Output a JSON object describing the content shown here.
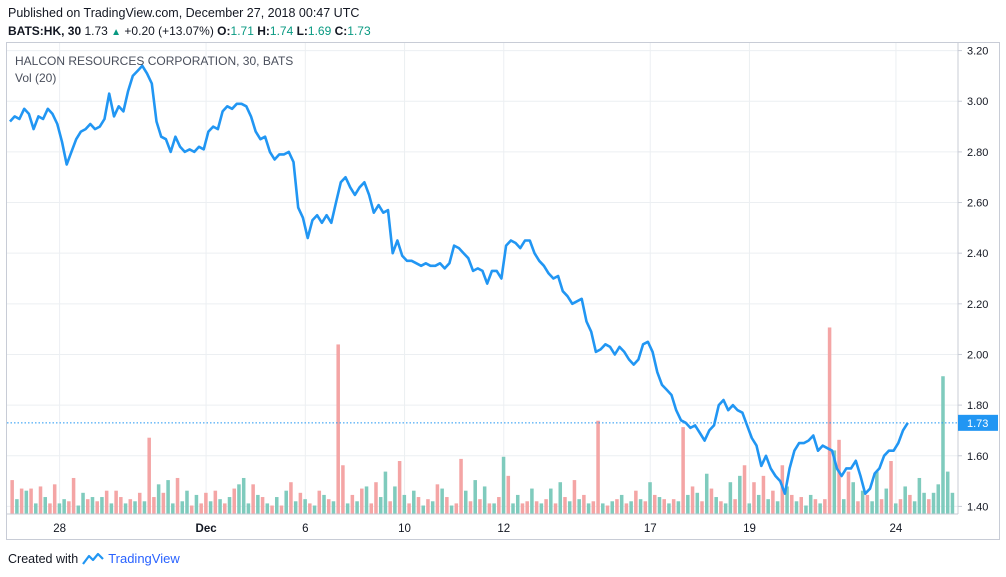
{
  "header": {
    "published": "Published on TradingView.com, December 27, 2018 00:47 UTC",
    "symbol": "BATS:HK, 30",
    "last": "1.73",
    "up_arrow": "▲",
    "change": "+0.20 (+13.07%)",
    "o_label": "O:",
    "o_value": "1.71",
    "h_label": "H:",
    "h_value": "1.74",
    "l_label": "L:",
    "l_value": "1.69",
    "c_label": "C:",
    "c_value": "1.73"
  },
  "legend": {
    "title": "HALCON RESOURCES CORPORATION, 30, BATS",
    "volume": "Vol (20)"
  },
  "footer": {
    "created_with": "Created with",
    "brand": "TradingView"
  },
  "colors": {
    "line": "#2196f3",
    "vol_up": "#7fcbbd",
    "vol_down": "#f4a5a5",
    "grid": "#eceff2",
    "last_price_line": "#2196f3"
  },
  "chart_data": {
    "type": "line",
    "title": "HALCON RESOURCES CORPORATION, 30, BATS",
    "ylim": [
      1.37,
      3.23
    ],
    "y_ticks": [
      "3.20",
      "3.00",
      "2.80",
      "2.60",
      "2.40",
      "2.20",
      "2.00",
      "1.80",
      "1.60",
      "1.40"
    ],
    "x_ticks": [
      "28",
      "Dec",
      "6",
      "10",
      "12",
      "17",
      "19",
      "24"
    ],
    "x_tick_index": [
      10.5,
      41.5,
      62.5,
      83.5,
      104.5,
      135.5,
      156.5,
      187.5
    ],
    "last_price": 1.73,
    "last_price_label": "1.73",
    "n_points": 200,
    "price_anchors": [
      [
        0,
        2.92
      ],
      [
        1,
        2.94
      ],
      [
        2,
        2.93
      ],
      [
        3,
        2.97
      ],
      [
        4,
        2.95
      ],
      [
        5,
        2.89
      ],
      [
        6,
        2.94
      ],
      [
        7,
        2.93
      ],
      [
        8,
        2.97
      ],
      [
        9,
        2.95
      ],
      [
        10,
        2.91
      ],
      [
        11,
        2.84
      ],
      [
        12,
        2.75
      ],
      [
        13,
        2.8
      ],
      [
        14,
        2.85
      ],
      [
        15,
        2.88
      ],
      [
        16,
        2.89
      ],
      [
        17,
        2.91
      ],
      [
        18,
        2.89
      ],
      [
        19,
        2.9
      ],
      [
        20,
        2.93
      ],
      [
        21,
        3.03
      ],
      [
        22,
        2.94
      ],
      [
        23,
        2.98
      ],
      [
        24,
        2.96
      ],
      [
        25,
        3.04
      ],
      [
        26,
        3.1
      ],
      [
        27,
        3.12
      ],
      [
        28,
        3.14
      ],
      [
        29,
        3.11
      ],
      [
        30,
        3.07
      ],
      [
        31,
        2.92
      ],
      [
        32,
        2.86
      ],
      [
        33,
        2.85
      ],
      [
        34,
        2.8
      ],
      [
        35,
        2.86
      ],
      [
        36,
        2.82
      ],
      [
        37,
        2.8
      ],
      [
        38,
        2.81
      ],
      [
        39,
        2.8
      ],
      [
        40,
        2.82
      ],
      [
        41,
        2.81
      ],
      [
        42,
        2.88
      ],
      [
        43,
        2.9
      ],
      [
        44,
        2.89
      ],
      [
        45,
        2.96
      ],
      [
        46,
        2.98
      ],
      [
        47,
        2.97
      ],
      [
        48,
        2.99
      ],
      [
        49,
        2.99
      ],
      [
        50,
        2.98
      ],
      [
        51,
        2.94
      ],
      [
        52,
        2.88
      ],
      [
        53,
        2.85
      ],
      [
        54,
        2.86
      ],
      [
        55,
        2.8
      ],
      [
        56,
        2.77
      ],
      [
        57,
        2.79
      ],
      [
        58,
        2.79
      ],
      [
        59,
        2.8
      ],
      [
        60,
        2.76
      ],
      [
        61,
        2.58
      ],
      [
        62,
        2.54
      ],
      [
        63,
        2.46
      ],
      [
        64,
        2.53
      ],
      [
        65,
        2.55
      ],
      [
        66,
        2.52
      ],
      [
        67,
        2.55
      ],
      [
        68,
        2.52
      ],
      [
        69,
        2.6
      ],
      [
        70,
        2.68
      ],
      [
        71,
        2.7
      ],
      [
        72,
        2.66
      ],
      [
        73,
        2.63
      ],
      [
        74,
        2.66
      ],
      [
        75,
        2.68
      ],
      [
        76,
        2.63
      ],
      [
        77,
        2.56
      ],
      [
        78,
        2.59
      ],
      [
        79,
        2.56
      ],
      [
        80,
        2.57
      ],
      [
        81,
        2.4
      ],
      [
        82,
        2.45
      ],
      [
        83,
        2.39
      ],
      [
        84,
        2.37
      ],
      [
        85,
        2.37
      ],
      [
        86,
        2.36
      ],
      [
        87,
        2.35
      ],
      [
        88,
        2.36
      ],
      [
        89,
        2.35
      ],
      [
        90,
        2.35
      ],
      [
        91,
        2.36
      ],
      [
        92,
        2.34
      ],
      [
        93,
        2.36
      ],
      [
        94,
        2.43
      ],
      [
        95,
        2.42
      ],
      [
        96,
        2.4
      ],
      [
        97,
        2.38
      ],
      [
        98,
        2.33
      ],
      [
        99,
        2.34
      ],
      [
        100,
        2.33
      ],
      [
        101,
        2.28
      ],
      [
        102,
        2.33
      ],
      [
        103,
        2.33
      ],
      [
        104,
        2.3
      ],
      [
        105,
        2.43
      ],
      [
        106,
        2.45
      ],
      [
        107,
        2.44
      ],
      [
        108,
        2.42
      ],
      [
        109,
        2.45
      ],
      [
        110,
        2.45
      ],
      [
        111,
        2.4
      ],
      [
        112,
        2.37
      ],
      [
        113,
        2.35
      ],
      [
        114,
        2.32
      ],
      [
        115,
        2.3
      ],
      [
        116,
        2.31
      ],
      [
        117,
        2.25
      ],
      [
        118,
        2.23
      ],
      [
        119,
        2.2
      ],
      [
        120,
        2.21
      ],
      [
        121,
        2.22
      ],
      [
        122,
        2.13
      ],
      [
        123,
        2.09
      ],
      [
        124,
        2.01
      ],
      [
        125,
        2.02
      ],
      [
        126,
        2.04
      ],
      [
        127,
        2.03
      ],
      [
        128,
        2.0
      ],
      [
        129,
        2.03
      ],
      [
        130,
        2.01
      ],
      [
        131,
        1.98
      ],
      [
        132,
        1.96
      ],
      [
        133,
        1.98
      ],
      [
        134,
        2.04
      ],
      [
        135,
        2.05
      ],
      [
        136,
        2.01
      ],
      [
        137,
        1.93
      ],
      [
        138,
        1.88
      ],
      [
        139,
        1.86
      ],
      [
        140,
        1.84
      ],
      [
        141,
        1.78
      ],
      [
        142,
        1.74
      ],
      [
        143,
        1.73
      ],
      [
        144,
        1.71
      ],
      [
        145,
        1.72
      ],
      [
        146,
        1.69
      ],
      [
        147,
        1.66
      ],
      [
        148,
        1.7
      ],
      [
        149,
        1.72
      ],
      [
        150,
        1.8
      ],
      [
        151,
        1.82
      ],
      [
        152,
        1.78
      ],
      [
        153,
        1.8
      ],
      [
        154,
        1.78
      ],
      [
        155,
        1.77
      ],
      [
        156,
        1.72
      ],
      [
        157,
        1.67
      ],
      [
        158,
        1.64
      ],
      [
        159,
        1.56
      ],
      [
        160,
        1.6
      ],
      [
        161,
        1.55
      ],
      [
        162,
        1.52
      ],
      [
        163,
        1.5
      ],
      [
        164,
        1.45
      ],
      [
        165,
        1.55
      ],
      [
        166,
        1.62
      ],
      [
        167,
        1.65
      ],
      [
        168,
        1.65
      ],
      [
        169,
        1.66
      ],
      [
        170,
        1.68
      ],
      [
        171,
        1.62
      ],
      [
        172,
        1.64
      ],
      [
        173,
        1.63
      ],
      [
        174,
        1.62
      ],
      [
        175,
        1.55
      ],
      [
        176,
        1.52
      ],
      [
        177,
        1.55
      ],
      [
        178,
        1.55
      ],
      [
        179,
        1.58
      ],
      [
        180,
        1.52
      ],
      [
        181,
        1.45
      ],
      [
        182,
        1.47
      ],
      [
        183,
        1.53
      ],
      [
        184,
        1.55
      ],
      [
        185,
        1.6
      ],
      [
        186,
        1.62
      ],
      [
        187,
        1.62
      ],
      [
        188,
        1.65
      ],
      [
        189,
        1.7
      ],
      [
        190,
        1.73
      ]
    ],
    "volume": {
      "max_display_fraction": 0.45,
      "bars": [
        [
          0.16,
          0
        ],
        [
          0.07,
          1
        ],
        [
          0.12,
          0
        ],
        [
          0.11,
          1
        ],
        [
          0.12,
          0
        ],
        [
          0.05,
          1
        ],
        [
          0.13,
          0
        ],
        [
          0.08,
          1
        ],
        [
          0.05,
          0
        ],
        [
          0.14,
          0
        ],
        [
          0.05,
          1
        ],
        [
          0.07,
          1
        ],
        [
          0.06,
          0
        ],
        [
          0.17,
          0
        ],
        [
          0.04,
          1
        ],
        [
          0.1,
          1
        ],
        [
          0.07,
          0
        ],
        [
          0.08,
          1
        ],
        [
          0.06,
          0
        ],
        [
          0.08,
          1
        ],
        [
          0.11,
          0
        ],
        [
          0.05,
          1
        ],
        [
          0.11,
          0
        ],
        [
          0.08,
          0
        ],
        [
          0.05,
          1
        ],
        [
          0.07,
          0
        ],
        [
          0.06,
          1
        ],
        [
          0.1,
          0
        ],
        [
          0.06,
          1
        ],
        [
          0.36,
          0
        ],
        [
          0.08,
          0
        ],
        [
          0.14,
          1
        ],
        [
          0.1,
          0
        ],
        [
          0.16,
          1
        ],
        [
          0.05,
          1
        ],
        [
          0.17,
          0
        ],
        [
          0.06,
          1
        ],
        [
          0.11,
          1
        ],
        [
          0.04,
          0
        ],
        [
          0.09,
          1
        ],
        [
          0.05,
          0
        ],
        [
          0.1,
          0
        ],
        [
          0.06,
          1
        ],
        [
          0.11,
          0
        ],
        [
          0.07,
          1
        ],
        [
          0.05,
          0
        ],
        [
          0.08,
          1
        ],
        [
          0.12,
          0
        ],
        [
          0.14,
          1
        ],
        [
          0.17,
          1
        ],
        [
          0.05,
          1
        ],
        [
          0.14,
          0
        ],
        [
          0.09,
          1
        ],
        [
          0.08,
          0
        ],
        [
          0.05,
          1
        ],
        [
          0.04,
          0
        ],
        [
          0.08,
          1
        ],
        [
          0.04,
          0
        ],
        [
          0.11,
          1
        ],
        [
          0.15,
          0
        ],
        [
          0.06,
          1
        ],
        [
          0.1,
          0
        ],
        [
          0.07,
          1
        ],
        [
          0.05,
          0
        ],
        [
          0.04,
          1
        ],
        [
          0.11,
          0
        ],
        [
          0.09,
          1
        ],
        [
          0.07,
          0
        ],
        [
          0.06,
          1
        ],
        [
          0.8,
          0
        ],
        [
          0.23,
          0
        ],
        [
          0.05,
          1
        ],
        [
          0.09,
          0
        ],
        [
          0.06,
          1
        ],
        [
          0.12,
          0
        ],
        [
          0.13,
          1
        ],
        [
          0.05,
          0
        ],
        [
          0.15,
          0
        ],
        [
          0.08,
          1
        ],
        [
          0.2,
          1
        ],
        [
          0.06,
          0
        ],
        [
          0.13,
          1
        ],
        [
          0.25,
          0
        ],
        [
          0.09,
          1
        ],
        [
          0.05,
          0
        ],
        [
          0.11,
          1
        ],
        [
          0.08,
          0
        ],
        [
          0.04,
          1
        ],
        [
          0.07,
          0
        ],
        [
          0.06,
          1
        ],
        [
          0.14,
          0
        ],
        [
          0.12,
          1
        ],
        [
          0.08,
          0
        ],
        [
          0.04,
          1
        ],
        [
          0.05,
          0
        ],
        [
          0.26,
          0
        ],
        [
          0.11,
          1
        ],
        [
          0.06,
          0
        ],
        [
          0.16,
          1
        ],
        [
          0.07,
          0
        ],
        [
          0.13,
          1
        ],
        [
          0.05,
          0
        ],
        [
          0.05,
          1
        ],
        [
          0.08,
          0
        ],
        [
          0.27,
          1
        ],
        [
          0.18,
          0
        ],
        [
          0.05,
          1
        ],
        [
          0.09,
          1
        ],
        [
          0.05,
          0
        ],
        [
          0.06,
          0
        ],
        [
          0.12,
          1
        ],
        [
          0.06,
          0
        ],
        [
          0.05,
          1
        ],
        [
          0.07,
          0
        ],
        [
          0.12,
          1
        ],
        [
          0.05,
          0
        ],
        [
          0.15,
          1
        ],
        [
          0.08,
          0
        ],
        [
          0.06,
          1
        ],
        [
          0.16,
          0
        ],
        [
          0.07,
          1
        ],
        [
          0.09,
          0
        ],
        [
          0.05,
          1
        ],
        [
          0.06,
          0
        ],
        [
          0.44,
          0
        ],
        [
          0.05,
          1
        ],
        [
          0.04,
          0
        ],
        [
          0.06,
          1
        ],
        [
          0.07,
          0
        ],
        [
          0.09,
          1
        ],
        [
          0.05,
          0
        ],
        [
          0.06,
          1
        ],
        [
          0.11,
          0
        ],
        [
          0.07,
          1
        ],
        [
          0.06,
          0
        ],
        [
          0.15,
          1
        ],
        [
          0.09,
          0
        ],
        [
          0.08,
          1
        ],
        [
          0.07,
          0
        ],
        [
          0.05,
          1
        ],
        [
          0.07,
          0
        ],
        [
          0.06,
          1
        ],
        [
          0.41,
          0
        ],
        [
          0.09,
          1
        ],
        [
          0.13,
          0
        ],
        [
          0.1,
          1
        ],
        [
          0.06,
          0
        ],
        [
          0.19,
          1
        ],
        [
          0.12,
          0
        ],
        [
          0.08,
          1
        ],
        [
          0.06,
          0
        ],
        [
          0.05,
          1
        ],
        [
          0.15,
          1
        ],
        [
          0.07,
          0
        ],
        [
          0.18,
          1
        ],
        [
          0.23,
          0
        ],
        [
          0.05,
          1
        ],
        [
          0.15,
          0
        ],
        [
          0.09,
          1
        ],
        [
          0.18,
          0
        ],
        [
          0.07,
          1
        ],
        [
          0.11,
          0
        ],
        [
          0.06,
          1
        ],
        [
          0.23,
          0
        ],
        [
          0.13,
          1
        ],
        [
          0.09,
          0
        ],
        [
          0.06,
          1
        ],
        [
          0.08,
          0
        ],
        [
          0.04,
          1
        ],
        [
          0.09,
          1
        ],
        [
          0.07,
          0
        ],
        [
          0.05,
          1
        ],
        [
          0.07,
          0
        ],
        [
          0.88,
          0
        ],
        [
          0.3,
          1
        ],
        [
          0.35,
          0
        ],
        [
          0.07,
          1
        ],
        [
          0.2,
          0
        ],
        [
          0.15,
          1
        ],
        [
          0.06,
          0
        ],
        [
          0.11,
          1
        ],
        [
          0.09,
          0
        ],
        [
          0.06,
          1
        ],
        [
          0.2,
          1
        ],
        [
          0.07,
          0
        ],
        [
          0.12,
          1
        ],
        [
          0.25,
          0
        ],
        [
          0.05,
          1
        ],
        [
          0.07,
          0
        ],
        [
          0.13,
          1
        ],
        [
          0.09,
          0
        ],
        [
          0.06,
          1
        ],
        [
          0.17,
          1
        ],
        [
          0.1,
          1
        ],
        [
          0.07,
          0
        ],
        [
          0.1,
          1
        ],
        [
          0.14,
          1
        ],
        [
          0.65,
          1
        ],
        [
          0.2,
          1
        ],
        [
          0.1,
          1
        ]
      ]
    }
  }
}
